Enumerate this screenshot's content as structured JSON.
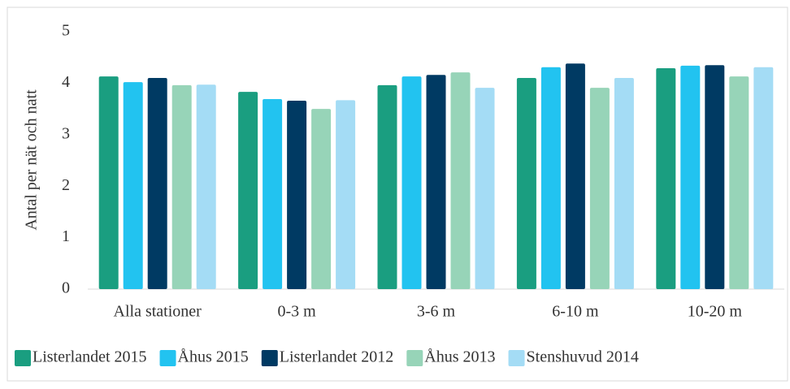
{
  "chart_data": {
    "type": "bar",
    "y_label": "Antal per nät och natt",
    "categories": [
      "Alla stationer",
      "0-3 m",
      "3-6 m",
      "6-10 m",
      "10-20 m"
    ],
    "series": [
      {
        "name": "Listerlandet 2015",
        "color": "#1a9e80",
        "values": [
          4.13,
          3.83,
          3.96,
          4.1,
          4.29
        ]
      },
      {
        "name": "Åhus 2015",
        "color": "#22c3f0",
        "values": [
          4.02,
          3.69,
          4.13,
          4.31,
          4.34
        ]
      },
      {
        "name": "Listerlandet 2012",
        "color": "#003a63",
        "values": [
          4.1,
          3.66,
          4.16,
          4.38,
          4.35
        ]
      },
      {
        "name": "Åhus 2013",
        "color": "#97d4b8",
        "values": [
          3.96,
          3.5,
          4.21,
          3.91,
          4.13
        ]
      },
      {
        "name": "Stenshuvud 2014",
        "color": "#a4dcf5",
        "values": [
          3.97,
          3.67,
          3.91,
          4.1,
          4.31
        ]
      }
    ],
    "ylim": [
      0,
      5
    ],
    "yticks": [
      0,
      1,
      2,
      3,
      4,
      5
    ],
    "grid": false,
    "legend": "bottom"
  }
}
